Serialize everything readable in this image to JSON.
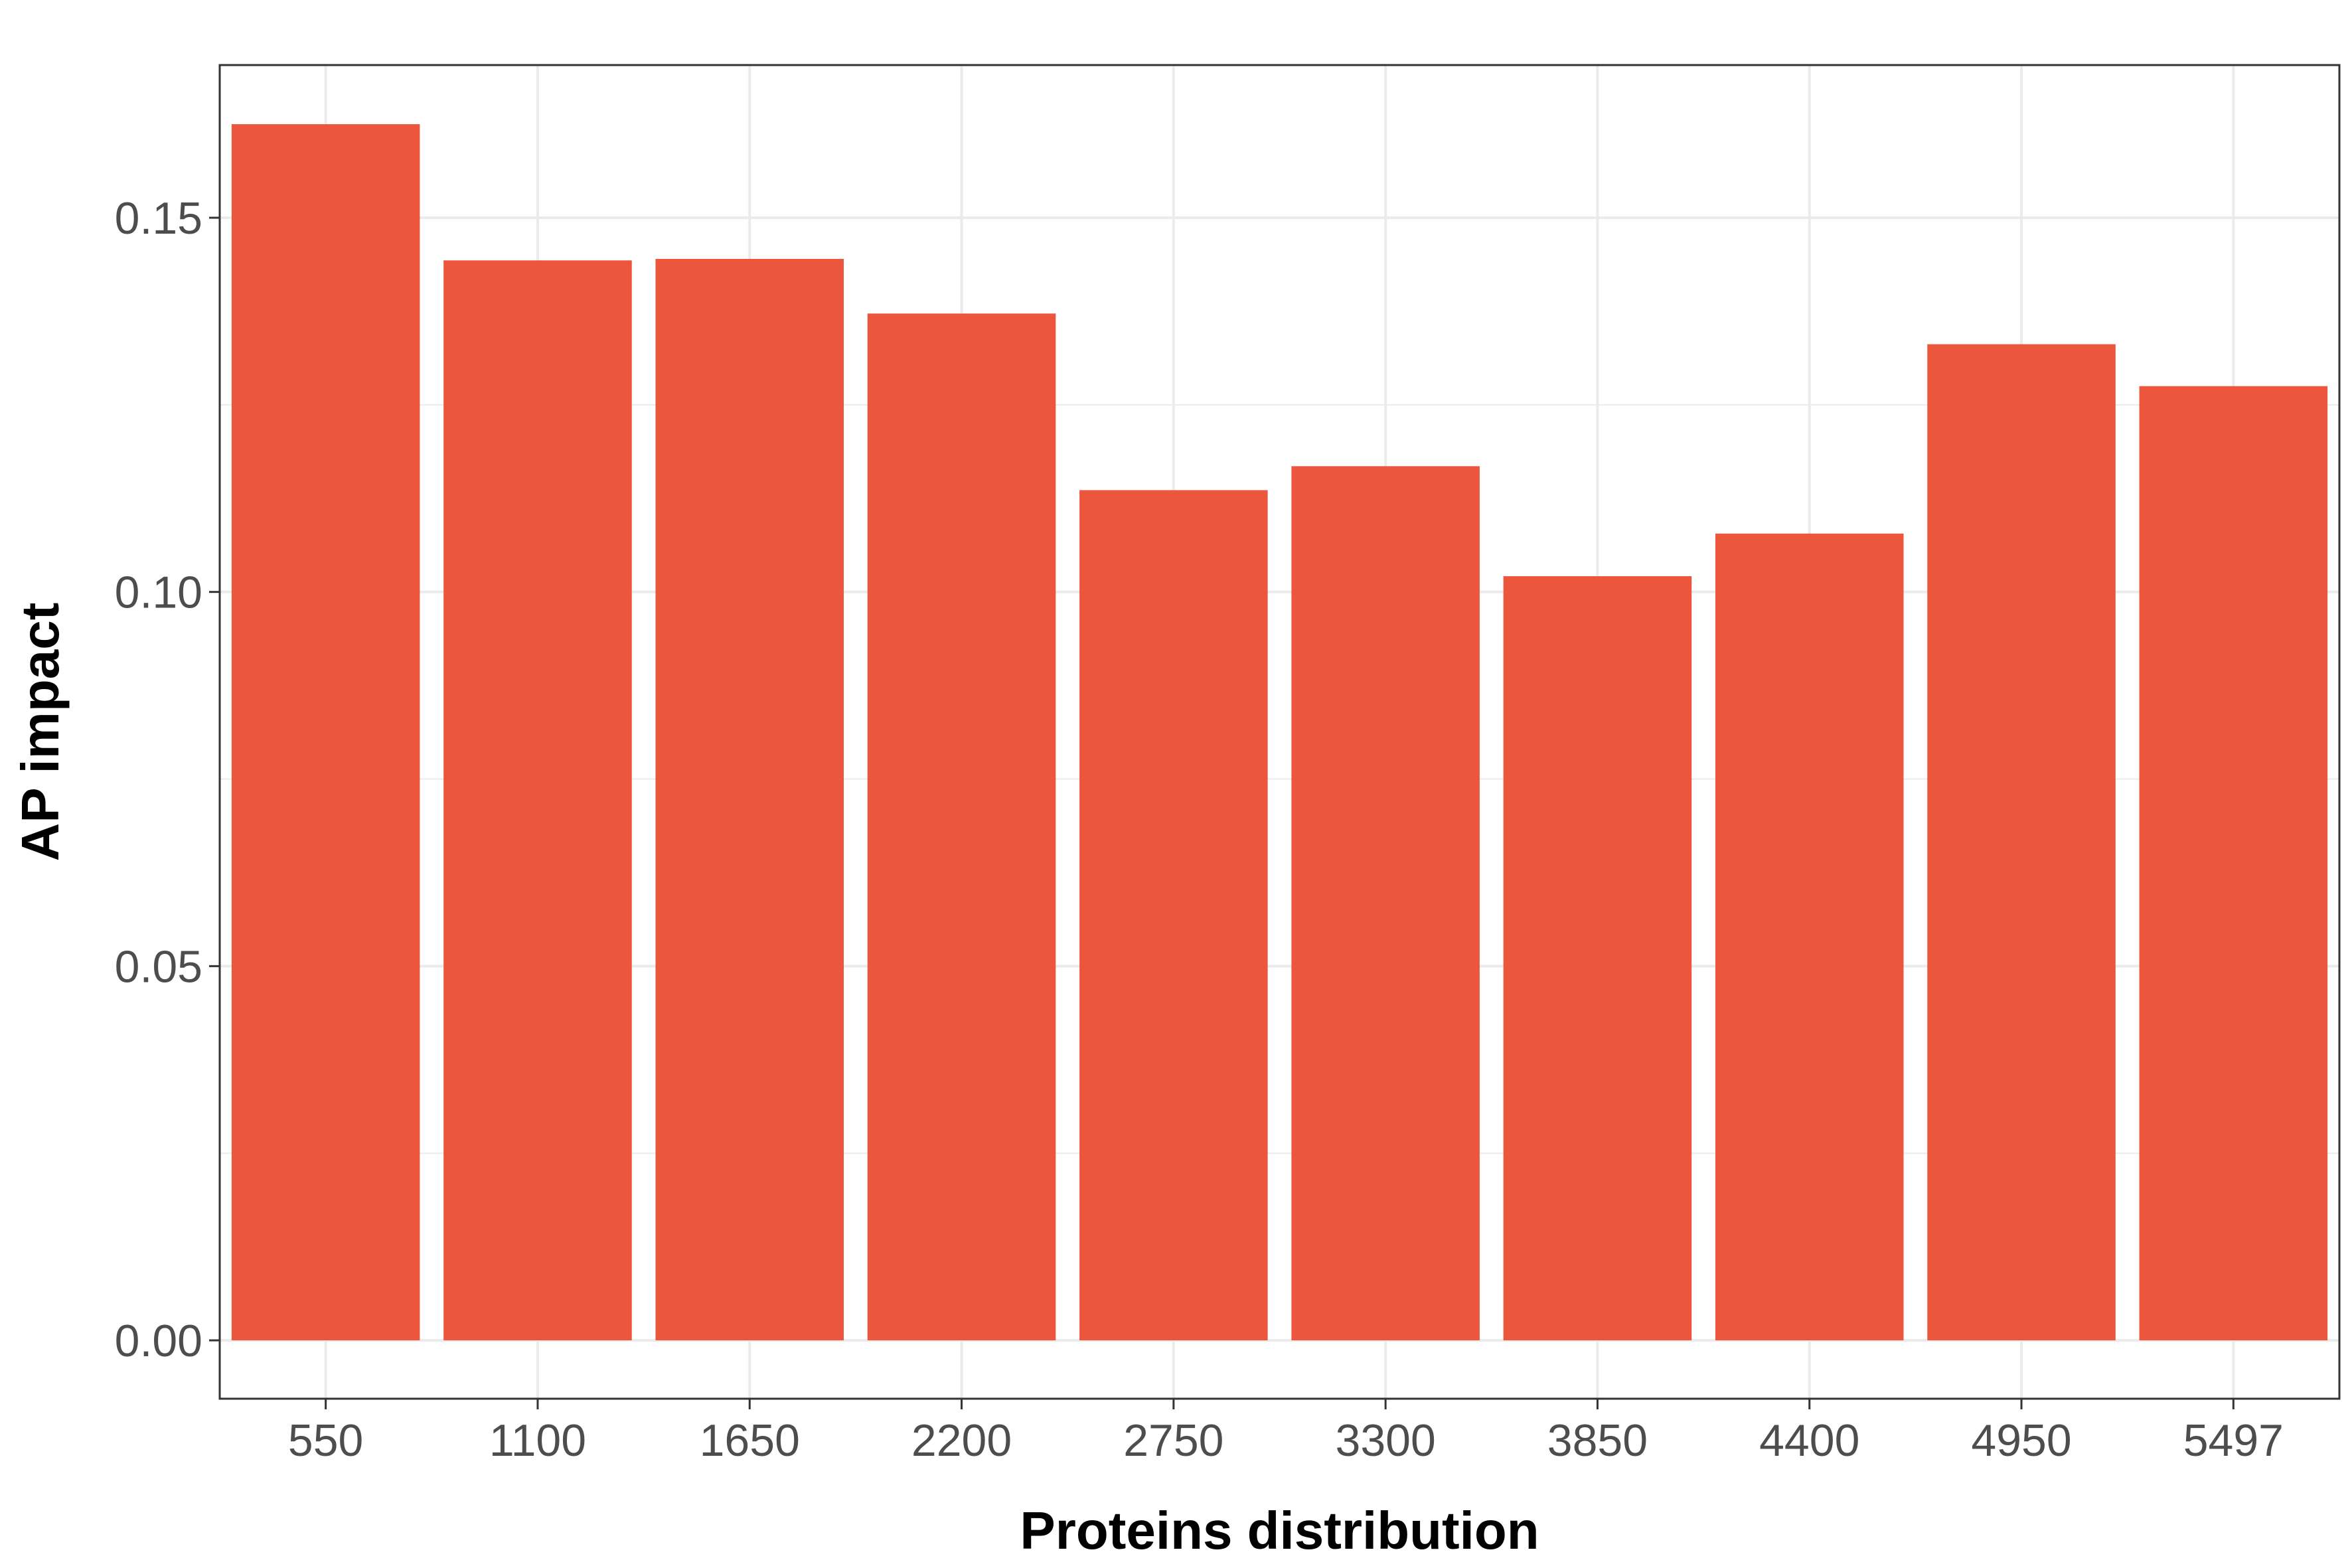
{
  "chart_data": {
    "type": "bar",
    "categories": [
      "550",
      "1100",
      "1650",
      "2200",
      "2750",
      "3300",
      "3850",
      "4400",
      "4950",
      "5497"
    ],
    "values": [
      0.1625,
      0.1443,
      0.1445,
      0.1372,
      0.1136,
      0.1168,
      0.1021,
      0.1078,
      0.1331,
      0.1275
    ],
    "title": "",
    "xlabel": "Proteins distribution",
    "ylabel": "AP impact",
    "ylim": [
      -0.0078,
      0.1704
    ],
    "yticks": [
      0.0,
      0.05,
      0.1,
      0.15
    ],
    "ytick_labels": [
      "0.00",
      "0.05",
      "0.10",
      "0.15"
    ],
    "grid": true,
    "legend": "none",
    "colors": {
      "bar": "#ec563c",
      "grid": "#ebebeb",
      "panel_border": "#333333",
      "tick_label": "#4d4d4d",
      "axis_title": "#000000"
    }
  }
}
